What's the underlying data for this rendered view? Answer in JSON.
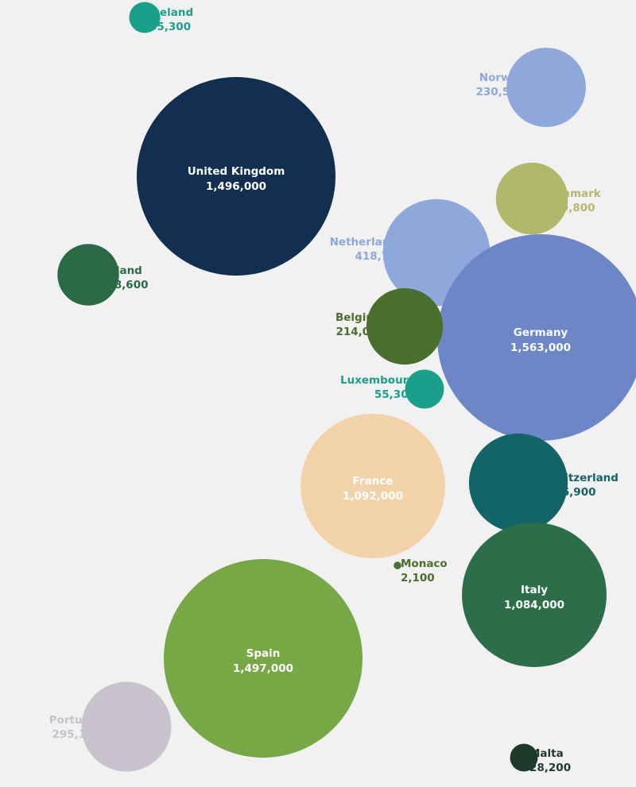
{
  "chart_data": {
    "type": "bubble",
    "title": "",
    "points": [
      {
        "name": "Iceland",
        "value": 35300,
        "value_label": "35,300",
        "color": "#1aa08a"
      },
      {
        "name": "Norway",
        "value": 230500,
        "value_label": "230,500",
        "color": "#8ea8dc"
      },
      {
        "name": "United Kingdom",
        "value": 1496000,
        "value_label": "1,496,000",
        "color": "#122e50"
      },
      {
        "name": "Denmark",
        "value": 189800,
        "value_label": "189,800",
        "color": "#b2b86a"
      },
      {
        "name": "Netherlands",
        "value": 418700,
        "value_label": "418,700",
        "color": "#8ea8dc"
      },
      {
        "name": "Ireland",
        "value": 138600,
        "value_label": "138,600",
        "color": "#2a6a44"
      },
      {
        "name": "Germany",
        "value": 1563000,
        "value_label": "1,563,000",
        "color": "#6d86c8"
      },
      {
        "name": "Belgium",
        "value": 214000,
        "value_label": "214,000",
        "color": "#4a6e2c"
      },
      {
        "name": "Luxembourg",
        "value": 55300,
        "value_label": "55,300",
        "color": "#1aa08a"
      },
      {
        "name": "France",
        "value": 1092000,
        "value_label": "1,092,000",
        "color": "#f2d3a9"
      },
      {
        "name": "Switzerland",
        "value": 356900,
        "value_label": "356,900",
        "color": "#136466"
      },
      {
        "name": "Monaco",
        "value": 2100,
        "value_label": "2,100",
        "color": "#4a6e2c"
      },
      {
        "name": "Italy",
        "value": 1084000,
        "value_label": "1,084,000",
        "color": "#2d6e4a"
      },
      {
        "name": "Spain",
        "value": 1497000,
        "value_label": "1,497,000",
        "color": "#76a845"
      },
      {
        "name": "Portugal",
        "value": 295100,
        "value_label": "295,100",
        "color": "#c8c2cc"
      },
      {
        "name": "Malta",
        "value": 28200,
        "value_label": "28,200",
        "color": "#1f3a2c"
      }
    ]
  }
}
